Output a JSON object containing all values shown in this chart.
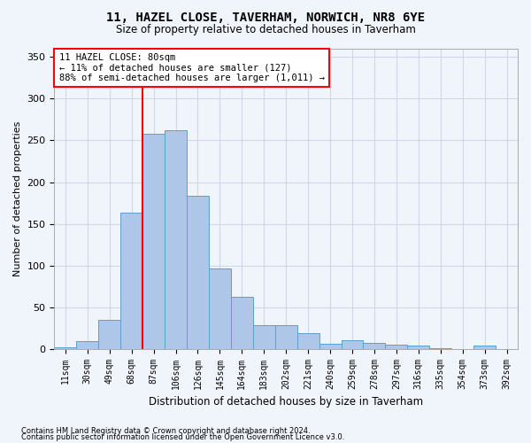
{
  "title": "11, HAZEL CLOSE, TAVERHAM, NORWICH, NR8 6YE",
  "subtitle": "Size of property relative to detached houses in Taverham",
  "xlabel": "Distribution of detached houses by size in Taverham",
  "ylabel": "Number of detached properties",
  "categories": [
    "11sqm",
    "30sqm",
    "49sqm",
    "68sqm",
    "87sqm",
    "106sqm",
    "126sqm",
    "145sqm",
    "164sqm",
    "183sqm",
    "202sqm",
    "221sqm",
    "240sqm",
    "259sqm",
    "278sqm",
    "297sqm",
    "316sqm",
    "335sqm",
    "354sqm",
    "373sqm",
    "392sqm"
  ],
  "bar_values": [
    2,
    9,
    35,
    163,
    258,
    262,
    184,
    96,
    62,
    28,
    28,
    19,
    6,
    10,
    7,
    5,
    4,
    1,
    0,
    4,
    0
  ],
  "bar_color": "#aec6e8",
  "bar_edge_color": "#5a9fd4",
  "vline_position": 3.5,
  "vline_color": "red",
  "annotation_title": "11 HAZEL CLOSE: 80sqm",
  "annotation_line1": "← 11% of detached houses are smaller (127)",
  "annotation_line2": "88% of semi-detached houses are larger (1,011) →",
  "annotation_box_color": "white",
  "annotation_box_edge": "red",
  "ylim": [
    0,
    360
  ],
  "yticks": [
    0,
    50,
    100,
    150,
    200,
    250,
    300,
    350
  ],
  "grid_color": "#d0d8e8",
  "footer1": "Contains HM Land Registry data © Crown copyright and database right 2024.",
  "footer2": "Contains public sector information licensed under the Open Government Licence v3.0.",
  "bg_color": "#f0f4fb",
  "plot_bg_color": "#f0f4fb"
}
